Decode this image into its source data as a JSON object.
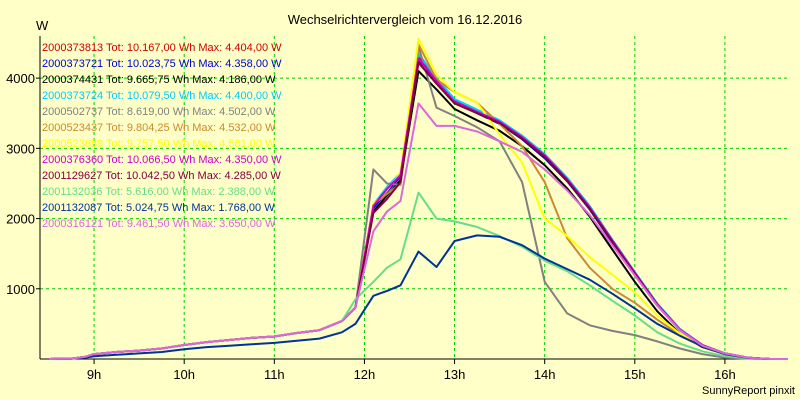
{
  "chart_data": {
    "type": "line",
    "title": "Wechselrichtervergleich vom 16.12.2016",
    "ylabel": "W",
    "footer": "SunnyReport pinxit",
    "ylim": [
      0,
      4600
    ],
    "xlim": [
      8.4,
      16.7
    ],
    "grid": true,
    "legend_position": "top-left",
    "x_ticks": [
      {
        "value": 9,
        "label": "9h"
      },
      {
        "value": 10,
        "label": "10h"
      },
      {
        "value": 11,
        "label": "11h"
      },
      {
        "value": 12,
        "label": "12h"
      },
      {
        "value": 13,
        "label": "13h"
      },
      {
        "value": 14,
        "label": "14h"
      },
      {
        "value": 15,
        "label": "15h"
      },
      {
        "value": 16,
        "label": "16h"
      }
    ],
    "y_ticks": [
      {
        "value": 1000,
        "label": "1000"
      },
      {
        "value": 2000,
        "label": "2000"
      },
      {
        "value": 3000,
        "label": "3000"
      },
      {
        "value": 4000,
        "label": "4000"
      }
    ],
    "x": [
      8.5,
      8.75,
      8.9,
      9.0,
      9.25,
      9.5,
      9.75,
      10.0,
      10.25,
      10.5,
      10.75,
      11.0,
      11.25,
      11.5,
      11.75,
      11.9,
      12.1,
      12.25,
      12.4,
      12.6,
      12.8,
      13.0,
      13.25,
      13.5,
      13.75,
      14.0,
      14.25,
      14.5,
      14.75,
      15.0,
      15.25,
      15.5,
      15.75,
      16.0,
      16.25,
      16.5,
      16.7
    ],
    "series": [
      {
        "name": "2000373813 Tot: 10.167,00 Wh Max: 4.404,00 W",
        "color": "#cc0000",
        "values": [
          0,
          5,
          30,
          70,
          100,
          120,
          150,
          200,
          240,
          270,
          300,
          320,
          370,
          410,
          540,
          730,
          2150,
          2400,
          2630,
          4300,
          3980,
          3680,
          3520,
          3370,
          3150,
          2880,
          2550,
          2150,
          1680,
          1220,
          780,
          420,
          200,
          80,
          20,
          0,
          0
        ]
      },
      {
        "name": "2000373721 Tot: 10.023,75 Wh Max: 4.358,00 W",
        "color": "#0000cc",
        "values": [
          0,
          5,
          30,
          70,
          100,
          120,
          150,
          200,
          240,
          270,
          300,
          320,
          370,
          410,
          540,
          730,
          2150,
          2380,
          2600,
          4260,
          3960,
          3660,
          3500,
          3350,
          3130,
          2860,
          2530,
          2130,
          1660,
          1200,
          760,
          410,
          190,
          80,
          20,
          0,
          0
        ]
      },
      {
        "name": "2000374431 Tot: 9.665,75 Wh Max: 4.186,00 W",
        "color": "#000000",
        "values": [
          0,
          5,
          30,
          70,
          100,
          120,
          150,
          200,
          240,
          270,
          300,
          320,
          370,
          410,
          540,
          730,
          2100,
          2330,
          2550,
          4100,
          3840,
          3560,
          3400,
          3250,
          3030,
          2760,
          2430,
          2030,
          1560,
          1100,
          680,
          360,
          170,
          70,
          15,
          0,
          0
        ]
      },
      {
        "name": "2000373724 Tot: 10.079,50 Wh Max: 4.400,00 W",
        "color": "#00ccff",
        "values": [
          0,
          5,
          30,
          70,
          100,
          120,
          150,
          200,
          240,
          270,
          300,
          320,
          370,
          410,
          540,
          730,
          2200,
          2450,
          2650,
          4350,
          4000,
          3700,
          3550,
          3400,
          3180,
          2920,
          2580,
          2180,
          1700,
          1240,
          790,
          430,
          200,
          80,
          20,
          0,
          0
        ]
      },
      {
        "name": "2000502737 Tot: 8.619,00 Wh Max: 4.502,00 W",
        "color": "#808080",
        "values": [
          0,
          5,
          30,
          70,
          100,
          120,
          150,
          200,
          240,
          270,
          300,
          320,
          370,
          410,
          540,
          730,
          2700,
          2500,
          2480,
          4450,
          3580,
          3460,
          3300,
          3100,
          2520,
          1100,
          650,
          480,
          400,
          340,
          250,
          150,
          70,
          20,
          5,
          0,
          0
        ]
      },
      {
        "name": "2000523437 Tot: 9.804,25 Wh Max: 4.532,00 W",
        "color": "#cc8833",
        "values": [
          0,
          5,
          30,
          70,
          100,
          120,
          150,
          200,
          240,
          270,
          300,
          320,
          370,
          410,
          540,
          730,
          2200,
          2350,
          2500,
          4480,
          3980,
          3800,
          3650,
          3350,
          3030,
          2520,
          1720,
          1300,
          1000,
          800,
          560,
          340,
          180,
          70,
          15,
          0,
          0
        ]
      },
      {
        "name": "2000523659 Tot: 9.757,50 Wh Max: 4.561,00 W",
        "color": "#ffff00",
        "values": [
          0,
          5,
          30,
          70,
          100,
          120,
          150,
          200,
          240,
          270,
          300,
          320,
          370,
          410,
          540,
          730,
          2200,
          2400,
          2650,
          4560,
          4050,
          3800,
          3650,
          3200,
          2800,
          2000,
          1750,
          1450,
          1200,
          950,
          620,
          360,
          190,
          80,
          20,
          0,
          0
        ]
      },
      {
        "name": "2000376360 Tot: 10.066,50 Wh Max: 4.350,00 W",
        "color": "#cc00cc",
        "values": [
          0,
          5,
          30,
          70,
          100,
          120,
          150,
          200,
          240,
          270,
          300,
          320,
          370,
          410,
          540,
          730,
          2180,
          2420,
          2620,
          4280,
          3960,
          3660,
          3520,
          3380,
          3160,
          2900,
          2560,
          2160,
          1690,
          1230,
          780,
          420,
          200,
          80,
          20,
          0,
          0
        ]
      },
      {
        "name": "2001129627 Tot: 10.042,50 Wh Max: 4.285,00 W",
        "color": "#800040",
        "values": [
          0,
          5,
          30,
          70,
          100,
          120,
          150,
          200,
          240,
          270,
          300,
          320,
          370,
          410,
          540,
          730,
          2080,
          2280,
          2520,
          4220,
          3920,
          3640,
          3500,
          3360,
          3140,
          2880,
          2540,
          2140,
          1670,
          1210,
          770,
          410,
          190,
          80,
          20,
          0,
          0
        ]
      },
      {
        "name": "2001132036 Tot: 5.616,00 Wh Max: 2.388,00 W",
        "color": "#66dd88",
        "values": [
          0,
          5,
          30,
          70,
          100,
          120,
          150,
          200,
          240,
          270,
          300,
          320,
          370,
          410,
          540,
          850,
          1100,
          1300,
          1420,
          2370,
          2000,
          1960,
          1880,
          1750,
          1600,
          1400,
          1250,
          1050,
          830,
          620,
          380,
          220,
          110,
          40,
          10,
          0,
          0
        ]
      },
      {
        "name": "2001132087 Tot: 5.024,75 Wh Max: 1.768,00 W",
        "color": "#003399",
        "values": [
          0,
          5,
          20,
          40,
          60,
          80,
          100,
          140,
          170,
          190,
          210,
          230,
          260,
          290,
          380,
          500,
          900,
          970,
          1050,
          1530,
          1310,
          1680,
          1760,
          1740,
          1620,
          1430,
          1280,
          1130,
          930,
          720,
          500,
          330,
          180,
          70,
          15,
          0,
          0
        ]
      },
      {
        "name": "2000316121 Tot: 9.461,50 Wh Max: 3.650,00 W",
        "color": "#dd66dd",
        "values": [
          0,
          5,
          30,
          70,
          100,
          120,
          150,
          200,
          240,
          270,
          300,
          320,
          370,
          410,
          540,
          730,
          1820,
          2100,
          2250,
          3640,
          3320,
          3320,
          3240,
          3100,
          2950,
          2700,
          2400,
          2050,
          1620,
          1190,
          760,
          410,
          190,
          80,
          20,
          0,
          0
        ]
      }
    ]
  }
}
